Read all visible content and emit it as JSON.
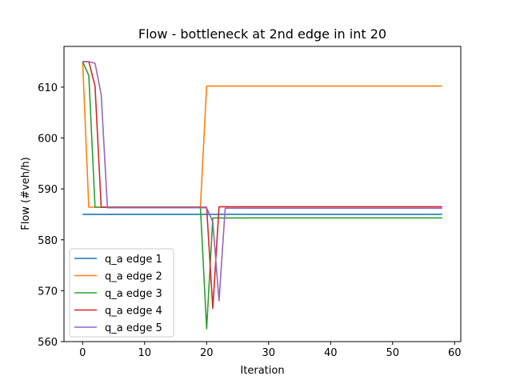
{
  "chart_data": {
    "type": "line",
    "title": "Flow - bottleneck at 2nd edge in int 20",
    "xlabel": "Iteration",
    "ylabel": "Flow (#veh/h)",
    "xlim": [
      -3,
      61
    ],
    "ylim": [
      560,
      618
    ],
    "xticks": [
      0,
      10,
      20,
      30,
      40,
      50,
      60
    ],
    "yticks": [
      560,
      570,
      580,
      590,
      600,
      610
    ],
    "grid": false,
    "legend_position": "lower-left",
    "series": [
      {
        "name": "q_a edge 1",
        "color": "#1f77b4",
        "x": [
          0,
          58
        ],
        "y": [
          585.0,
          585.0
        ]
      },
      {
        "name": "q_a edge 2",
        "color": "#ff7f0e",
        "x": [
          0,
          1,
          2,
          19,
          20,
          58
        ],
        "y": [
          615.0,
          586.4,
          586.4,
          586.4,
          610.2,
          610.2
        ]
      },
      {
        "name": "q_a edge 3",
        "color": "#2ca02c",
        "x": [
          0,
          1,
          2,
          19,
          20,
          21,
          22,
          58
        ],
        "y": [
          615.0,
          612.3,
          586.4,
          586.4,
          562.5,
          584.3,
          584.3,
          584.3
        ]
      },
      {
        "name": "q_a edge 4",
        "color": "#d62728",
        "x": [
          0,
          1,
          2,
          3,
          20,
          21,
          22,
          58
        ],
        "y": [
          615.0,
          615.0,
          610.2,
          586.4,
          586.4,
          566.5,
          586.5,
          586.5
        ]
      },
      {
        "name": "q_a edge 5",
        "color": "#9467bd",
        "x": [
          0,
          1,
          2,
          3,
          4,
          20,
          21,
          22,
          23,
          58
        ],
        "y": [
          615.0,
          615.0,
          614.7,
          608.5,
          586.3,
          586.3,
          583.5,
          568.0,
          586.2,
          586.2
        ]
      }
    ]
  }
}
